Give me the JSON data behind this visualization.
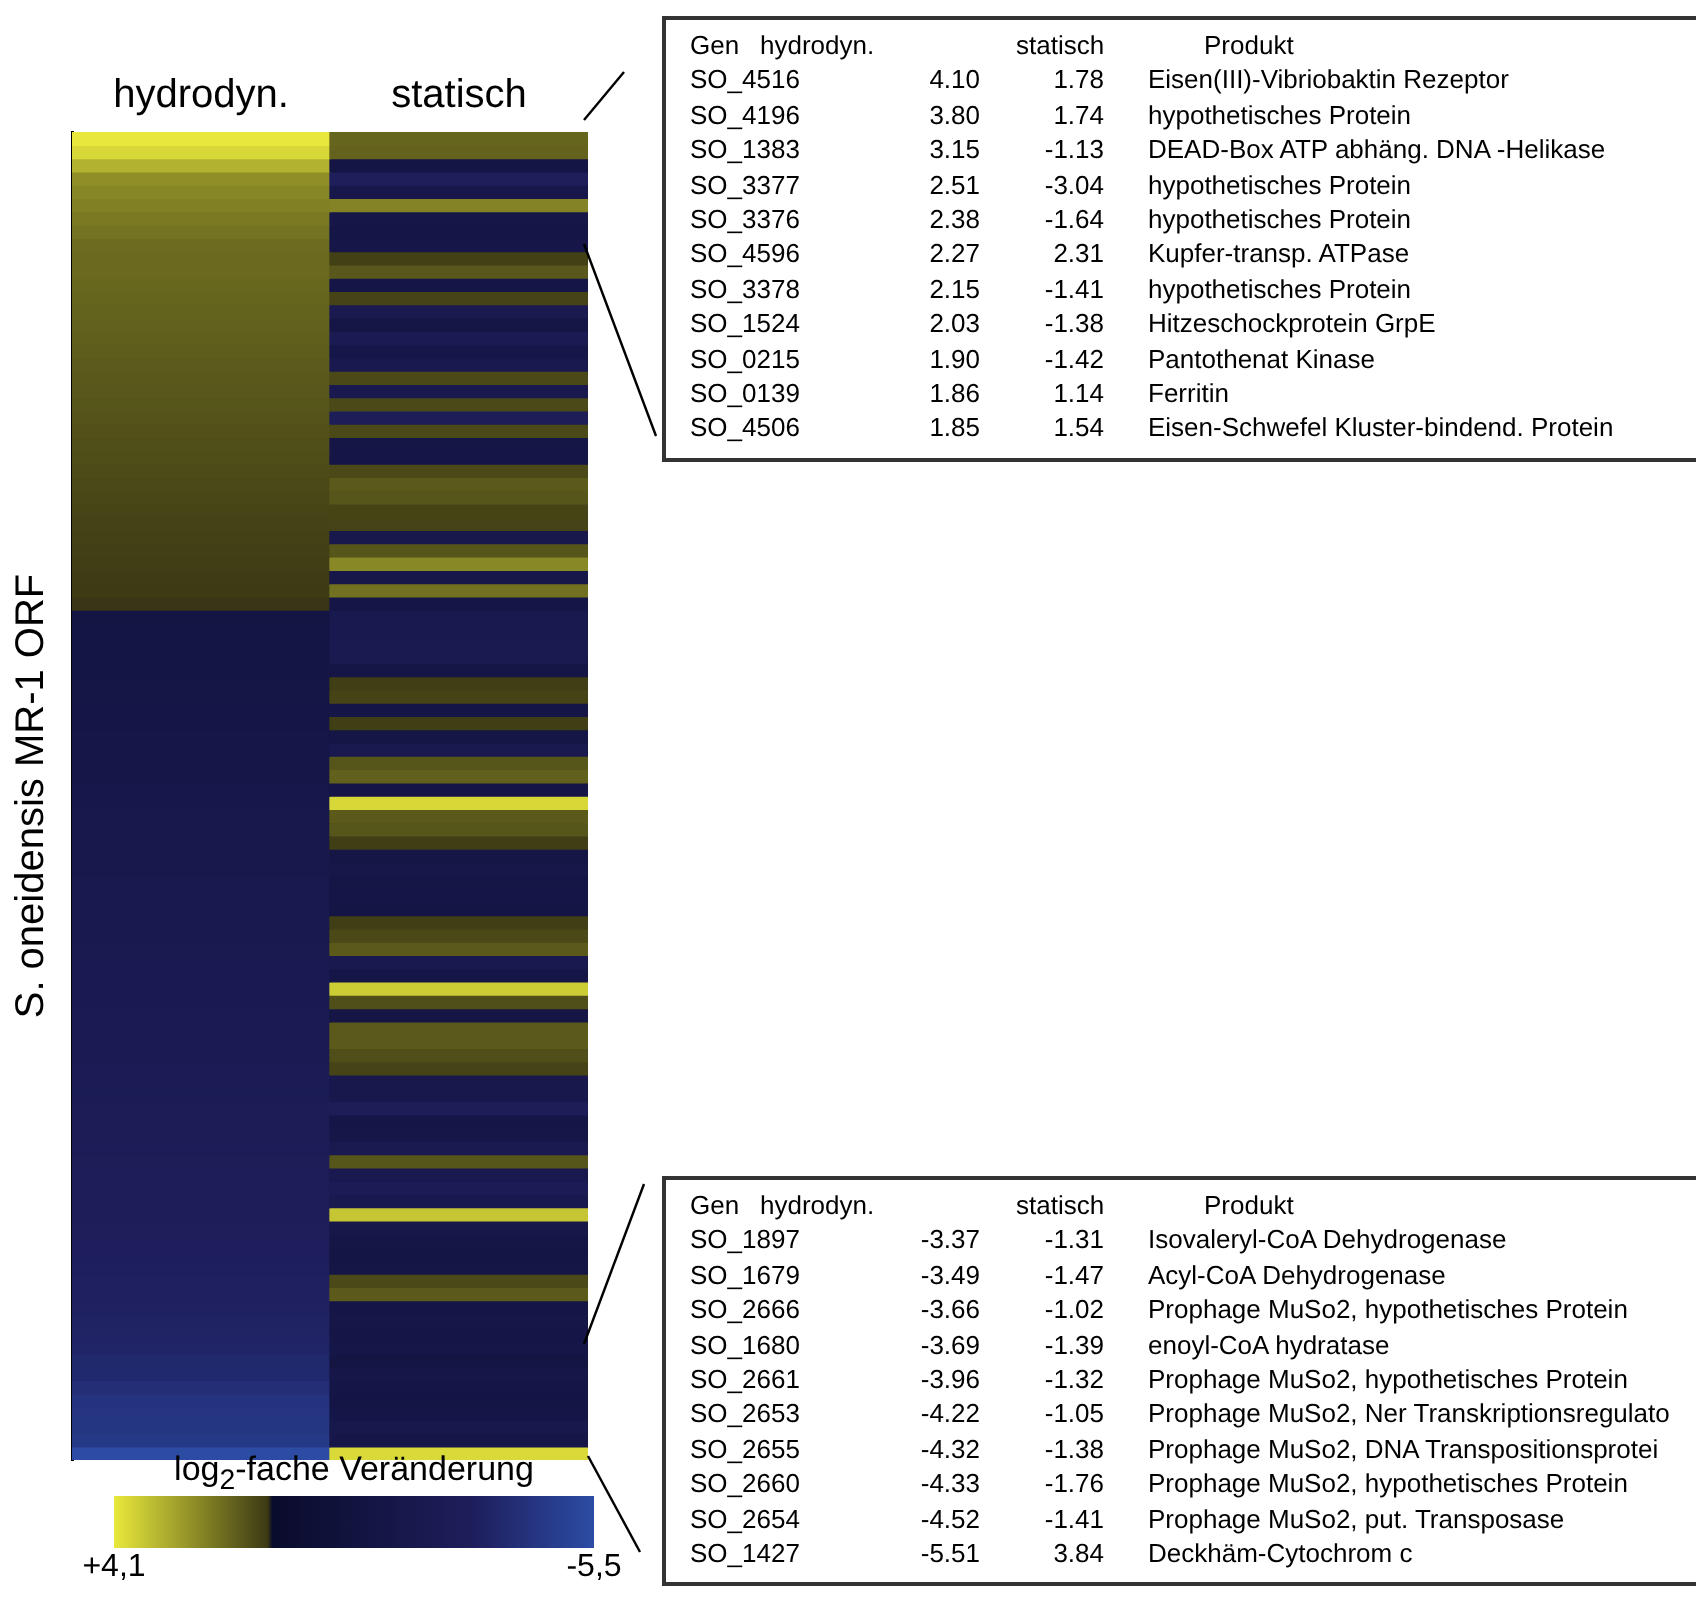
{
  "chart_data": [
    {
      "type": "heatmap",
      "categories": [
        "hydrodyn.",
        "statisch"
      ],
      "ylabel": "S. oneidensis MR-1 ORF",
      "clabel": "log$_{2}$-fache Veränderung",
      "clim": [
        4.1,
        -5.5
      ],
      "cticks": [
        {
          "value": 4.1,
          "label": "+4,1"
        },
        {
          "value": -5.5,
          "label": "-5,5"
        }
      ],
      "y_categories": [
        null,
        null,
        null,
        null,
        null,
        null,
        null,
        null,
        null,
        null,
        null,
        null,
        null,
        null,
        null,
        null,
        null,
        null,
        null,
        null,
        null,
        null,
        null,
        null,
        null,
        null,
        null,
        null,
        null,
        null,
        null,
        null,
        null,
        null,
        null,
        null,
        null,
        null,
        null,
        null,
        null,
        null,
        null,
        null,
        null,
        null,
        null,
        null,
        null,
        null,
        null,
        null,
        null,
        null,
        null,
        null,
        null,
        null,
        null,
        null,
        null,
        null,
        null,
        null,
        null,
        null,
        null,
        null,
        null,
        null,
        null,
        null,
        null,
        null,
        null,
        null,
        null,
        null,
        null,
        null,
        null,
        null,
        null,
        null,
        null,
        null,
        null,
        null,
        null,
        null,
        null,
        null,
        null,
        null,
        null,
        null,
        null,
        null,
        null,
        null
      ],
      "cells": [
        [
          4.1,
          1.78
        ],
        [
          3.8,
          1.74
        ],
        [
          3.15,
          -1.13
        ],
        [
          2.51,
          -3.04
        ],
        [
          2.38,
          -1.64
        ],
        [
          2.27,
          2.31
        ],
        [
          2.15,
          -1.41
        ],
        [
          2.03,
          -1.38
        ],
        [
          1.9,
          -1.42
        ],
        [
          1.86,
          1.14
        ],
        [
          1.85,
          1.54
        ],
        [
          1.82,
          -1.3
        ],
        [
          1.78,
          1.2
        ],
        [
          1.75,
          -2.2
        ],
        [
          1.71,
          -1.2
        ],
        [
          1.68,
          -2.4
        ],
        [
          1.64,
          -1.5
        ],
        [
          1.61,
          -2.0
        ],
        [
          1.57,
          1.3
        ],
        [
          1.54,
          -2.0
        ],
        [
          1.5,
          1.3
        ],
        [
          1.47,
          -2.8
        ],
        [
          1.43,
          1.3
        ],
        [
          1.4,
          -1.2
        ],
        [
          1.36,
          -1.3
        ],
        [
          1.33,
          1.3
        ],
        [
          1.29,
          1.6
        ],
        [
          1.26,
          1.5
        ],
        [
          1.22,
          1.2
        ],
        [
          1.19,
          1.2
        ],
        [
          1.15,
          -1.8
        ],
        [
          1.12,
          1.5
        ],
        [
          1.09,
          2.4
        ],
        [
          1.06,
          -1.6
        ],
        [
          1.04,
          2.0
        ],
        [
          1.02,
          -1.3
        ],
        [
          -1.02,
          -1.9
        ],
        [
          -1.06,
          -1.9
        ],
        [
          -1.11,
          -2.1
        ],
        [
          -1.15,
          -2.2
        ],
        [
          -1.19,
          -1.2
        ],
        [
          -1.24,
          1.1
        ],
        [
          -1.28,
          1.2
        ],
        [
          -1.32,
          -1.3
        ],
        [
          -1.37,
          1.1
        ],
        [
          -1.41,
          -1.2
        ],
        [
          -1.45,
          -2.0
        ],
        [
          -1.5,
          1.5
        ],
        [
          -1.54,
          1.7
        ],
        [
          -1.58,
          -1.3
        ],
        [
          -1.63,
          3.8
        ],
        [
          -1.67,
          1.6
        ],
        [
          -1.71,
          1.5
        ],
        [
          -1.76,
          1.1
        ],
        [
          -1.8,
          -1.2
        ],
        [
          -1.84,
          -1.6
        ],
        [
          -1.89,
          -1.2
        ],
        [
          -1.93,
          -1.3
        ],
        [
          -1.97,
          -1.1
        ],
        [
          -2.02,
          1.1
        ],
        [
          -2.06,
          1.3
        ],
        [
          -2.1,
          1.6
        ],
        [
          -2.15,
          -2.0
        ],
        [
          -2.19,
          -1.3
        ],
        [
          -2.23,
          3.6
        ],
        [
          -2.28,
          1.4
        ],
        [
          -2.32,
          -1.2
        ],
        [
          -2.36,
          1.6
        ],
        [
          -2.41,
          1.6
        ],
        [
          -2.45,
          1.4
        ],
        [
          -2.49,
          1.2
        ],
        [
          -2.54,
          -1.8
        ],
        [
          -2.58,
          -1.8
        ],
        [
          -2.62,
          -2.8
        ],
        [
          -2.67,
          -1.3
        ],
        [
          -2.71,
          -1.4
        ],
        [
          -2.75,
          -2.2
        ],
        [
          -2.8,
          1.5
        ],
        [
          -2.84,
          -2.0
        ],
        [
          -2.88,
          -2.5
        ],
        [
          -2.93,
          -1.9
        ],
        [
          -2.97,
          3.5
        ],
        [
          -3.01,
          -1.6
        ],
        [
          -3.06,
          -1.2
        ],
        [
          -3.1,
          -1.1
        ],
        [
          -3.14,
          -1.2
        ],
        [
          -3.19,
          1.3
        ],
        [
          -3.23,
          1.6
        ],
        [
          -3.27,
          -1.3
        ],
        [
          -3.32,
          -1.4
        ],
        [
          -3.37,
          -1.31
        ],
        [
          -3.49,
          -1.47
        ],
        [
          -3.66,
          -1.02
        ],
        [
          -3.69,
          -1.39
        ],
        [
          -3.96,
          -1.32
        ],
        [
          -4.22,
          -1.05
        ],
        [
          -4.32,
          -1.38
        ],
        [
          -4.33,
          -1.76
        ],
        [
          -4.52,
          -1.41
        ],
        [
          -5.51,
          3.84
        ]
      ]
    },
    {
      "type": "other",
      "annotations": [
        "Gen",
        "hydrodyn.",
        "statisch",
        "Produkt",
        "SO_4516",
        "4.10",
        "1.78",
        "Eisen(III)-Vibriobaktin Rezeptor",
        "SO_4196",
        "3.80",
        "1.74",
        "hypothetisches Protein",
        "SO_1383",
        "3.15",
        "-1.13",
        "DEAD-Box ATP abhäng. DNA -Helikase",
        "SO_3377",
        "2.51",
        "-3.04",
        "hypothetisches Protein",
        "SO_3376",
        "2.38",
        "-1.64",
        "hypothetisches Protein",
        "SO_4596",
        "2.27",
        "2.31",
        "Kupfer-transp. ATPase",
        "SO_3378",
        "2.15",
        "-1.41",
        "hypothetisches Protein",
        "SO_1524",
        "2.03",
        "-1.38",
        "Hitzeschockprotein GrpE",
        "SO_0215",
        "1.90",
        "-1.42",
        "Pantothenat Kinase",
        "SO_0139",
        "1.86",
        "1.14",
        "Ferritin",
        "SO_4506",
        "1.85",
        "1.54",
        "Eisen-Schwefel Kluster-bindend. Protein"
      ]
    },
    {
      "type": "other",
      "annotations": [
        "Gen",
        "hydrodyn.",
        "statisch",
        "Produkt",
        "SO_1897",
        "-3.37",
        "-1.31",
        "Isovaleryl-CoA Dehydrogenase",
        "SO_1679",
        "-3.49",
        "-1.47",
        "Acyl-CoA Dehydrogenase",
        "SO_2666",
        "-3.66",
        "-1.02",
        "Prophage MuSo2, hypothetisches Protein",
        "SO_1680",
        "-3.69",
        "-1.39",
        "enoyl-CoA hydratase",
        "SO_2661",
        "-3.96",
        "-1.32",
        "Prophage MuSo2, hypothetisches Protein",
        "SO_2653",
        "-4.22",
        "-1.05",
        "Prophage MuSo2, Ner Transkriptionsregulato",
        "SO_2655",
        "-4.32",
        "-1.38",
        "Prophage MuSo2, DNA Transpositionsprotei",
        "SO_2660",
        "-4.33",
        "-1.76",
        "Prophage MuSo2, hypothetisches Protein",
        "SO_2654",
        "-4.52",
        "-1.41",
        "Prophage MuSo2, put. Transposase",
        "SO_1427",
        "-5.51",
        "3.84",
        "Deckhäm-Cytochrom c"
      ]
    }
  ]
}
